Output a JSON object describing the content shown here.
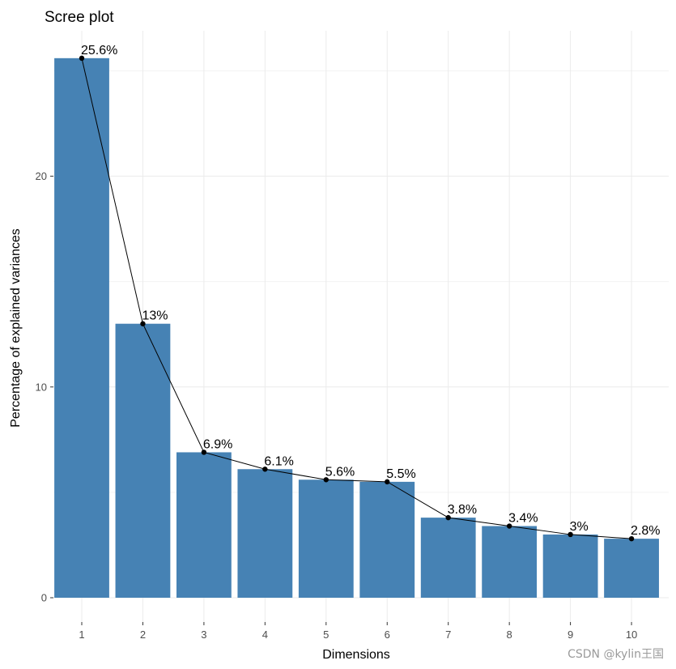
{
  "chart_data": {
    "type": "bar",
    "title": "Scree plot",
    "xlabel": "Dimensions",
    "ylabel": "Percentage of explained variances",
    "categories": [
      "1",
      "2",
      "3",
      "4",
      "5",
      "6",
      "7",
      "8",
      "9",
      "10"
    ],
    "values": [
      25.6,
      13.0,
      6.9,
      6.1,
      5.6,
      5.5,
      3.8,
      3.4,
      3.0,
      2.8
    ],
    "data_labels": [
      "25.6%",
      "13%",
      "6.9%",
      "6.1%",
      "5.6%",
      "5.5%",
      "3.8%",
      "3.4%",
      "3%",
      "2.8%"
    ],
    "ylim": [
      0,
      26.9
    ],
    "y_ticks": [
      0,
      10,
      20
    ],
    "y_tick_labels": [
      "0",
      "10",
      "20"
    ],
    "grid": true,
    "bar_color": "#4682B4",
    "line_color": "#000000",
    "point_color": "#000000",
    "watermark": "CSDN @kylin王国"
  }
}
